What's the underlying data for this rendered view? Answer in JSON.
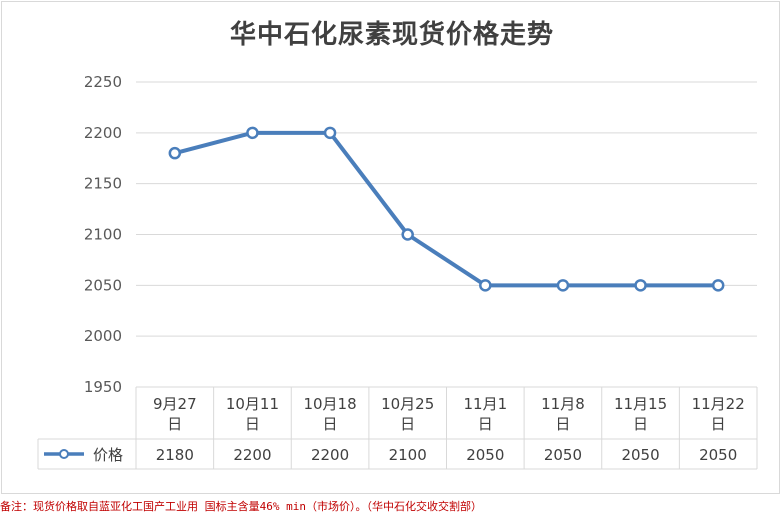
{
  "chart_data": {
    "type": "line",
    "title": "华中石化尿素现货价格走势",
    "categories": [
      "9月27日",
      "10月11日",
      "10月18日",
      "10月25日",
      "11月1日",
      "11月8日",
      "11月15日",
      "11月22日"
    ],
    "series": [
      {
        "name": "价格",
        "values": [
          2180,
          2200,
          2200,
          2100,
          2050,
          2050,
          2050,
          2050
        ],
        "color": "#4a7ebb"
      }
    ],
    "yticks": [
      1950,
      2000,
      2050,
      2100,
      2150,
      2200,
      2250
    ],
    "ylim": [
      1950,
      2250
    ],
    "grid": true,
    "data_table": true
  },
  "footnote": "备注：现货价格取自蓝亚化工国产工业用 国标主含量46% min（市场价）。（华中石化交收交割部）"
}
